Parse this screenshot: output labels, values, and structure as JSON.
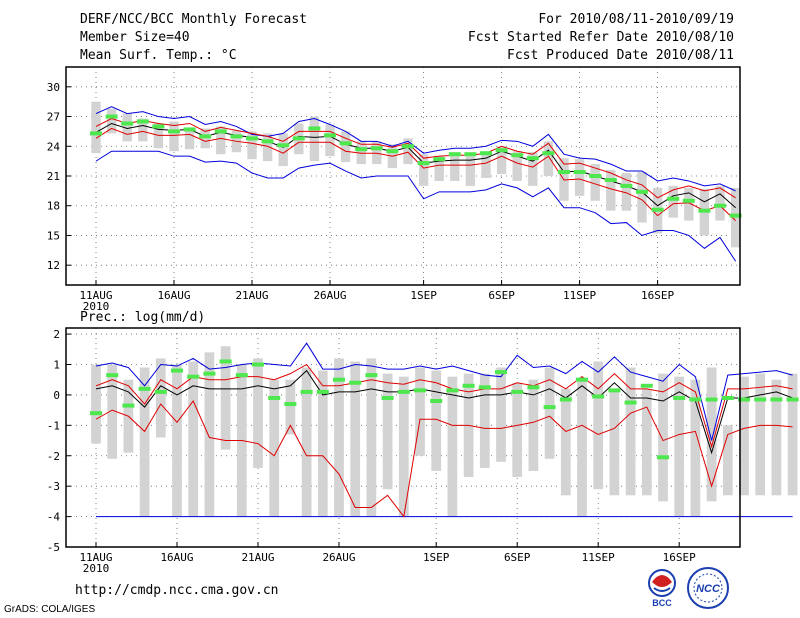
{
  "header": {
    "title": "DERF/NCC/BCC Monthly Forecast",
    "member_size": "Member Size=40",
    "variable": "Mean Surf. Temp.: °C",
    "period": "For 2010/08/11-2010/09/19",
    "started": "Fcst Started Refer Date 2010/08/10",
    "produced": "Fcst Produced Date 2010/08/11"
  },
  "footer": {
    "url": "http://cmdp.ncc.cma.gov.cn",
    "grads": "GrADS: COLA/IGES",
    "logo_bcc": "BCC",
    "logo_ncc": "NCC"
  },
  "colors": {
    "box": "#d3d3d3",
    "median": "#4ee84e",
    "mean": "#000000",
    "band": "#e00000",
    "envelope": "#0000dd"
  },
  "chart_data": [
    {
      "type": "box-line",
      "title": "Mean Surf. Temp.: °C",
      "ylim": [
        10,
        32
      ],
      "yticks": [
        12,
        15,
        18,
        21,
        24,
        27,
        30
      ],
      "xticks": [
        {
          "day": 1,
          "label": "11AUG",
          "sub": "2010"
        },
        {
          "day": 6,
          "label": "16AUG"
        },
        {
          "day": 11,
          "label": "21AUG"
        },
        {
          "day": 16,
          "label": "26AUG"
        },
        {
          "day": 22,
          "label": "1SEP"
        },
        {
          "day": 27,
          "label": "6SEP"
        },
        {
          "day": 32,
          "label": "11SEP"
        },
        {
          "day": 37,
          "label": "16SEP"
        }
      ],
      "series": [
        {
          "name": "max",
          "values": [
            27.3,
            28.0,
            27.3,
            27.5,
            27.0,
            26.8,
            27.0,
            26.2,
            26.5,
            26.0,
            25.2,
            25.0,
            25.3,
            26.5,
            26.8,
            26.2,
            25.5,
            24.5,
            24.5,
            24.0,
            24.5,
            23.3,
            23.6,
            23.8,
            23.8,
            24.0,
            24.6,
            24.5,
            24.0,
            25.2,
            23.2,
            22.8,
            22.7,
            22.2,
            21.5,
            21.5,
            20.5,
            20.8,
            20.5,
            20.0,
            20.2,
            19.5
          ]
        },
        {
          "name": "upper",
          "values": [
            26.0,
            26.8,
            26.3,
            26.6,
            26.3,
            26.1,
            26.3,
            25.5,
            25.9,
            25.6,
            25.3,
            25.0,
            24.5,
            25.5,
            25.5,
            25.5,
            24.8,
            24.2,
            24.2,
            23.9,
            24.3,
            22.8,
            23.0,
            23.1,
            23.1,
            23.3,
            24.0,
            23.5,
            23.2,
            24.3,
            22.2,
            22.3,
            21.8,
            21.3,
            20.6,
            20.1,
            18.8,
            19.6,
            20.0,
            19.5,
            19.8,
            18.8
          ]
        },
        {
          "name": "mean",
          "values": [
            25.4,
            26.3,
            25.8,
            26.1,
            25.7,
            25.6,
            25.7,
            25.0,
            25.4,
            25.1,
            24.9,
            24.5,
            23.9,
            25.0,
            24.9,
            25.0,
            24.2,
            23.8,
            23.8,
            23.5,
            23.9,
            22.3,
            22.5,
            22.6,
            22.6,
            22.8,
            23.5,
            23.0,
            22.5,
            23.6,
            21.4,
            21.5,
            21.0,
            20.5,
            20.0,
            19.4,
            18.0,
            19.0,
            19.3,
            18.4,
            19.2,
            17.8
          ]
        },
        {
          "name": "lower",
          "values": [
            24.8,
            25.8,
            25.2,
            25.5,
            25.1,
            25.1,
            25.2,
            24.5,
            24.8,
            24.5,
            24.3,
            24.0,
            23.3,
            24.4,
            24.4,
            24.4,
            23.5,
            23.3,
            23.3,
            23.0,
            23.4,
            21.8,
            22.1,
            22.1,
            22.1,
            22.3,
            23.0,
            22.3,
            21.9,
            23.0,
            20.6,
            20.7,
            20.2,
            19.7,
            19.3,
            18.6,
            17.0,
            18.2,
            18.3,
            17.5,
            18.0,
            16.5
          ]
        },
        {
          "name": "min",
          "values": [
            22.5,
            23.5,
            23.5,
            23.5,
            23.5,
            23.0,
            23.0,
            22.4,
            22.5,
            22.3,
            21.3,
            20.8,
            20.8,
            21.8,
            22.1,
            22.3,
            21.5,
            20.8,
            21.0,
            21.0,
            21.0,
            18.7,
            19.4,
            19.4,
            19.4,
            19.6,
            20.2,
            19.8,
            18.9,
            19.8,
            17.8,
            17.8,
            17.3,
            16.2,
            16.3,
            15.0,
            15.5,
            15.5,
            15.0,
            13.7,
            14.8,
            12.4
          ]
        },
        {
          "name": "median",
          "values": [
            25.3,
            27.0,
            26.3,
            26.5,
            26.0,
            25.5,
            25.7,
            25.0,
            25.5,
            25.0,
            24.8,
            24.5,
            24.1,
            24.8,
            25.8,
            25.1,
            24.3,
            23.7,
            23.8,
            23.5,
            24.0,
            22.3,
            22.7,
            23.2,
            23.2,
            23.3,
            23.6,
            23.1,
            22.8,
            23.3,
            21.4,
            21.4,
            21.0,
            20.6,
            20.0,
            19.4,
            17.6,
            18.7,
            18.5,
            17.5,
            18.0,
            17.0
          ]
        },
        {
          "name": "box_high",
          "values": [
            28.5,
            27.8,
            27.3,
            26.8,
            26.3,
            26.5,
            25.8,
            25.8,
            26.0,
            25.6,
            25.5,
            25.3,
            25.3,
            26.3,
            27.0,
            26.2,
            25.5,
            24.5,
            24.5,
            24.2,
            24.8,
            23.2,
            23.0,
            23.3,
            23.0,
            23.2,
            24.0,
            23.5,
            23.4,
            24.5,
            22.8,
            22.7,
            22.2,
            21.6,
            21.3,
            21.4,
            19.8,
            20.0,
            19.8,
            19.7,
            20.0,
            19.8
          ]
        },
        {
          "name": "box_low",
          "values": [
            23.3,
            25.3,
            24.5,
            24.5,
            23.8,
            23.5,
            23.7,
            23.8,
            23.2,
            23.4,
            22.7,
            22.5,
            22.0,
            23.2,
            22.5,
            23.0,
            22.4,
            22.2,
            22.2,
            21.8,
            22.2,
            20.0,
            20.5,
            20.5,
            20.0,
            20.8,
            21.2,
            20.5,
            20.0,
            21.0,
            18.5,
            19.0,
            18.5,
            17.5,
            17.5,
            16.3,
            15.2,
            16.8,
            16.5,
            15.0,
            16.5,
            13.8
          ]
        }
      ]
    },
    {
      "type": "box-line",
      "title": "Prec.: log(mm/d)",
      "ylim": [
        -5,
        2.2
      ],
      "yticks": [
        -5,
        -4,
        -3,
        -2,
        -1,
        0,
        1,
        2
      ],
      "xticks": [
        {
          "day": 1,
          "label": "11AUG",
          "sub": "2010"
        },
        {
          "day": 6,
          "label": "16AUG"
        },
        {
          "day": 11,
          "label": "21AUG"
        },
        {
          "day": 16,
          "label": "26AUG"
        },
        {
          "day": 22,
          "label": "1SEP"
        },
        {
          "day": 27,
          "label": "6SEP"
        },
        {
          "day": 32,
          "label": "11SEP"
        },
        {
          "day": 37,
          "label": "16SEP"
        }
      ],
      "series": [
        {
          "name": "max",
          "values": [
            0.95,
            1.05,
            0.9,
            0.3,
            1.0,
            0.95,
            1.2,
            0.85,
            0.9,
            1.0,
            1.05,
            1.0,
            0.95,
            1.7,
            0.85,
            0.85,
            1.0,
            0.95,
            0.85,
            0.85,
            0.95,
            0.85,
            0.95,
            0.8,
            0.65,
            0.6,
            1.3,
            0.9,
            0.95,
            0.7,
            1.1,
            0.75,
            1.25,
            0.75,
            0.6,
            0.45,
            1.0,
            0.6,
            -1.5,
            0.65,
            0.7,
            0.75,
            0.8,
            0.65
          ]
        },
        {
          "name": "upper",
          "values": [
            0.3,
            0.5,
            0.3,
            -0.3,
            0.5,
            0.2,
            0.6,
            0.5,
            0.5,
            0.6,
            0.6,
            0.5,
            0.7,
            1.0,
            0.3,
            0.3,
            0.4,
            0.5,
            0.4,
            0.35,
            0.5,
            0.4,
            0.2,
            0.1,
            0.2,
            0.2,
            0.4,
            0.3,
            0.5,
            0.2,
            0.6,
            0.2,
            0.7,
            0.2,
            0.2,
            0.1,
            0.4,
            0.1,
            -1.7,
            0.2,
            0.2,
            0.25,
            0.3,
            0.2
          ]
        },
        {
          "name": "mean",
          "values": [
            0.2,
            0.3,
            0.1,
            -0.4,
            0.3,
            0.0,
            0.3,
            0.2,
            0.2,
            0.2,
            0.3,
            0.2,
            0.3,
            0.8,
            0.0,
            0.1,
            0.1,
            0.2,
            0.1,
            0.1,
            0.2,
            0.1,
            0.0,
            -0.1,
            0.0,
            0.0,
            0.1,
            0.0,
            0.2,
            -0.1,
            0.3,
            -0.1,
            0.4,
            -0.1,
            -0.1,
            -0.2,
            0.1,
            -0.2,
            -1.9,
            -0.1,
            -0.1,
            0.0,
            0.1,
            -0.1
          ]
        },
        {
          "name": "lower",
          "values": [
            -0.8,
            -0.5,
            -0.7,
            -1.2,
            -0.3,
            -0.9,
            -0.2,
            -1.4,
            -1.5,
            -1.5,
            -1.6,
            -2.0,
            -1.0,
            -2.0,
            -2.0,
            -2.6,
            -3.7,
            -3.7,
            -3.3,
            -4.0,
            -0.8,
            -0.8,
            -1.0,
            -1.0,
            -1.1,
            -1.1,
            -1.0,
            -0.9,
            -0.7,
            -1.2,
            -1.0,
            -1.3,
            -1.1,
            -0.6,
            -0.4,
            -1.5,
            -1.3,
            -1.2,
            -3.0,
            -1.3,
            -1.1,
            -1.0,
            -1.0,
            -1.05
          ]
        },
        {
          "name": "min",
          "values": [
            -4,
            -4,
            -4,
            -4,
            -4,
            -4,
            -4,
            -4,
            -4,
            -4,
            -4,
            -4,
            -4,
            -4,
            -4,
            -4,
            -4,
            -4,
            -4,
            -4,
            -4,
            -4,
            -4,
            -4,
            -4,
            -4,
            -4,
            -4,
            -4,
            -4,
            -4,
            -4,
            -4,
            -4,
            -4,
            -4,
            -4,
            -4,
            -4,
            -4,
            -4,
            -4,
            -4,
            -4
          ]
        },
        {
          "name": "median",
          "values": [
            -0.6,
            0.65,
            -0.35,
            0.2,
            0.1,
            0.8,
            0.6,
            0.7,
            1.1,
            0.65,
            1.0,
            -0.1,
            -0.3,
            0.1,
            0.1,
            0.5,
            0.4,
            0.65,
            -0.1,
            0.1,
            0.15,
            -0.2,
            0.15,
            0.3,
            0.25,
            0.75,
            0.1,
            0.25,
            -0.4,
            -0.15,
            0.5,
            -0.05,
            0.15,
            -0.25,
            0.3,
            -2.05,
            -0.1,
            -0.15,
            -0.15,
            -0.1,
            -0.15,
            -0.15,
            -0.15,
            -0.15
          ]
        },
        {
          "name": "box_high",
          "values": [
            1.0,
            1.0,
            0.5,
            0.9,
            1.2,
            1.0,
            1.1,
            1.4,
            1.6,
            1.0,
            1.2,
            0.5,
            0.5,
            0.9,
            0.8,
            1.2,
            1.1,
            1.2,
            0.7,
            0.6,
            0.9,
            0.8,
            0.6,
            0.7,
            0.7,
            0.9,
            0.4,
            0.5,
            0.9,
            0.2,
            0.5,
            1.1,
            0.2,
            0.9,
            0.2,
            0.7,
            0.6,
            0.5,
            0.9,
            -1.0,
            0.6,
            0.7,
            0.5,
            0.7
          ]
        },
        {
          "name": "box_low",
          "values": [
            -1.6,
            -2.1,
            -1.9,
            -4,
            -1.4,
            -4,
            -4,
            -4,
            -1.8,
            -4,
            -2.4,
            -4,
            -1.3,
            -4,
            -4,
            -4,
            -4,
            -4,
            -3.1,
            -4,
            -2.0,
            -2.5,
            -4,
            -2.7,
            -2.4,
            -2.2,
            -2.7,
            -2.5,
            -2.1,
            -3.3,
            -4,
            -3.1,
            -3.3,
            -3.3,
            -3.3,
            -3.5,
            -4,
            -4,
            -3.5,
            -3.3,
            -3.3,
            -3.3,
            -3.3,
            -3.3
          ]
        }
      ]
    }
  ]
}
